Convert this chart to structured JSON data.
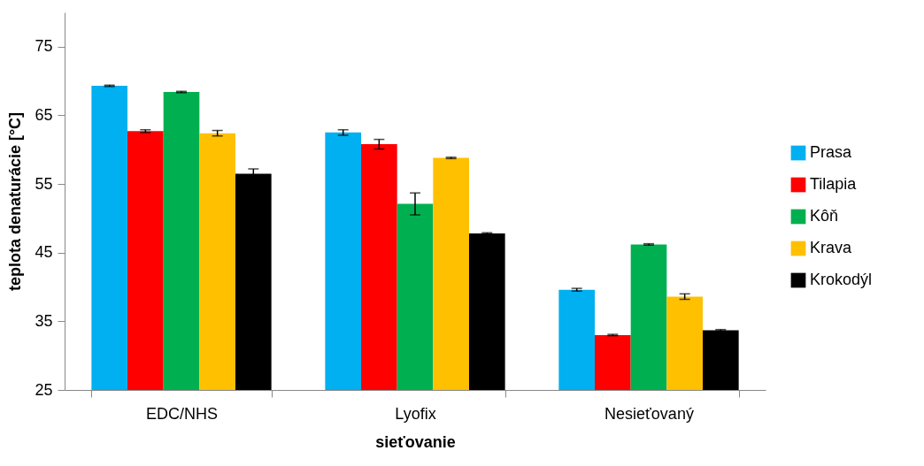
{
  "chart_data": {
    "type": "bar",
    "xlabel": "sieťovanie",
    "ylabel": "teplota denaturácie [°C]",
    "categories": [
      "EDC/NHS",
      "Lyofix",
      "Nesieťovaný"
    ],
    "series": [
      {
        "name": "Prasa",
        "color": "#00b0f0",
        "values": [
          69.3,
          62.5,
          39.6
        ],
        "errors": [
          0.1,
          0.4,
          0.2
        ]
      },
      {
        "name": "Tilapia",
        "color": "#ff0000",
        "values": [
          62.7,
          60.8,
          33.0
        ],
        "errors": [
          0.2,
          0.7,
          0.1
        ]
      },
      {
        "name": "Kôň",
        "color": "#00b050",
        "values": [
          68.4,
          52.1,
          46.2
        ],
        "errors": [
          0.1,
          1.6,
          0.1
        ]
      },
      {
        "name": "Krava",
        "color": "#ffc000",
        "values": [
          62.4,
          58.8,
          38.6
        ],
        "errors": [
          0.4,
          0.1,
          0.4
        ]
      },
      {
        "name": "Krokodýl",
        "color": "#000000",
        "values": [
          56.5,
          47.8,
          33.7
        ],
        "errors": [
          0.7,
          0.1,
          0.1
        ]
      }
    ],
    "ylim": [
      25,
      80
    ],
    "yticks": [
      25,
      35,
      45,
      55,
      65,
      75
    ],
    "grid": false,
    "legend": "right"
  }
}
